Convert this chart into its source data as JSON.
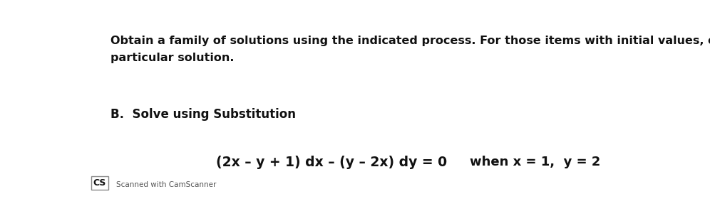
{
  "background_color": "#ffffff",
  "title_line1": "Obtain a family of solutions using the indicated process. For those items with initial values, obtain the",
  "title_line2": "particular solution.",
  "section_label": "B.  Solve using Substitution",
  "equation": "(2x – y + 1) dx – (y – 2x) dy = 0",
  "condition": "when x = 1,  y = 2",
  "watermark_cs": "CS",
  "watermark_text": "Scanned with CamScanner",
  "title_fontsize": 11.5,
  "section_fontsize": 12.0,
  "eq_fontsize": 13.5,
  "cond_fontsize": 13.0,
  "watermark_cs_fontsize": 9,
  "watermark_fontsize": 7.5,
  "text_color": "#111111",
  "watermark_color": "#555555"
}
